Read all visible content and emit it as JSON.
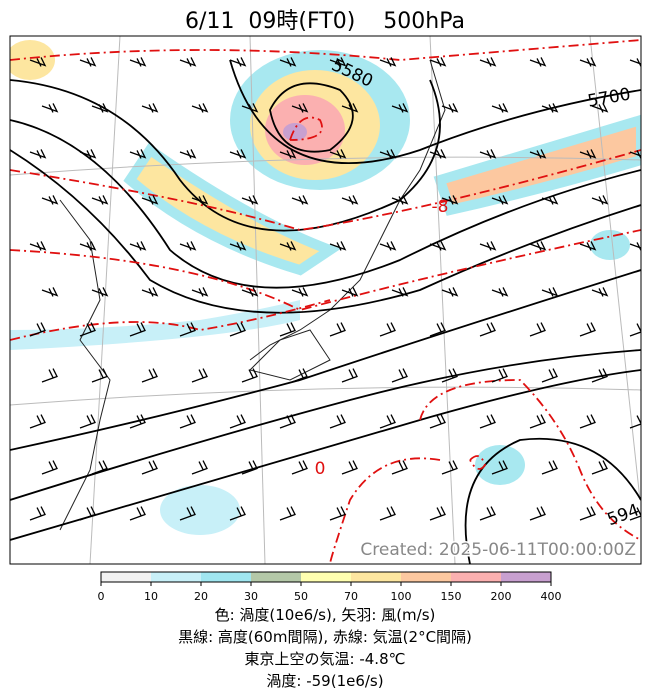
{
  "header": {
    "title": "6/11  09時(FT0)    500hPa"
  },
  "map": {
    "contour_labels": [
      "5580",
      "5700",
      "594"
    ],
    "temperature_labels": [
      "-8",
      "0"
    ],
    "created": "Created: 2025-06-11T00:00:00Z"
  },
  "colorbar": {
    "ticks": [
      "0",
      "10",
      "20",
      "30",
      "50",
      "70",
      "100",
      "150",
      "200",
      "400"
    ]
  },
  "caption": {
    "lines": [
      "色: 渦度(10e6/s), 矢羽: 風(m/s)",
      "黒線: 高度(60m間隔), 赤線: 気温(2°C間隔)",
      "東京上空の気温: -4.8℃",
      "渦度: -59(1e6/s)"
    ]
  }
}
